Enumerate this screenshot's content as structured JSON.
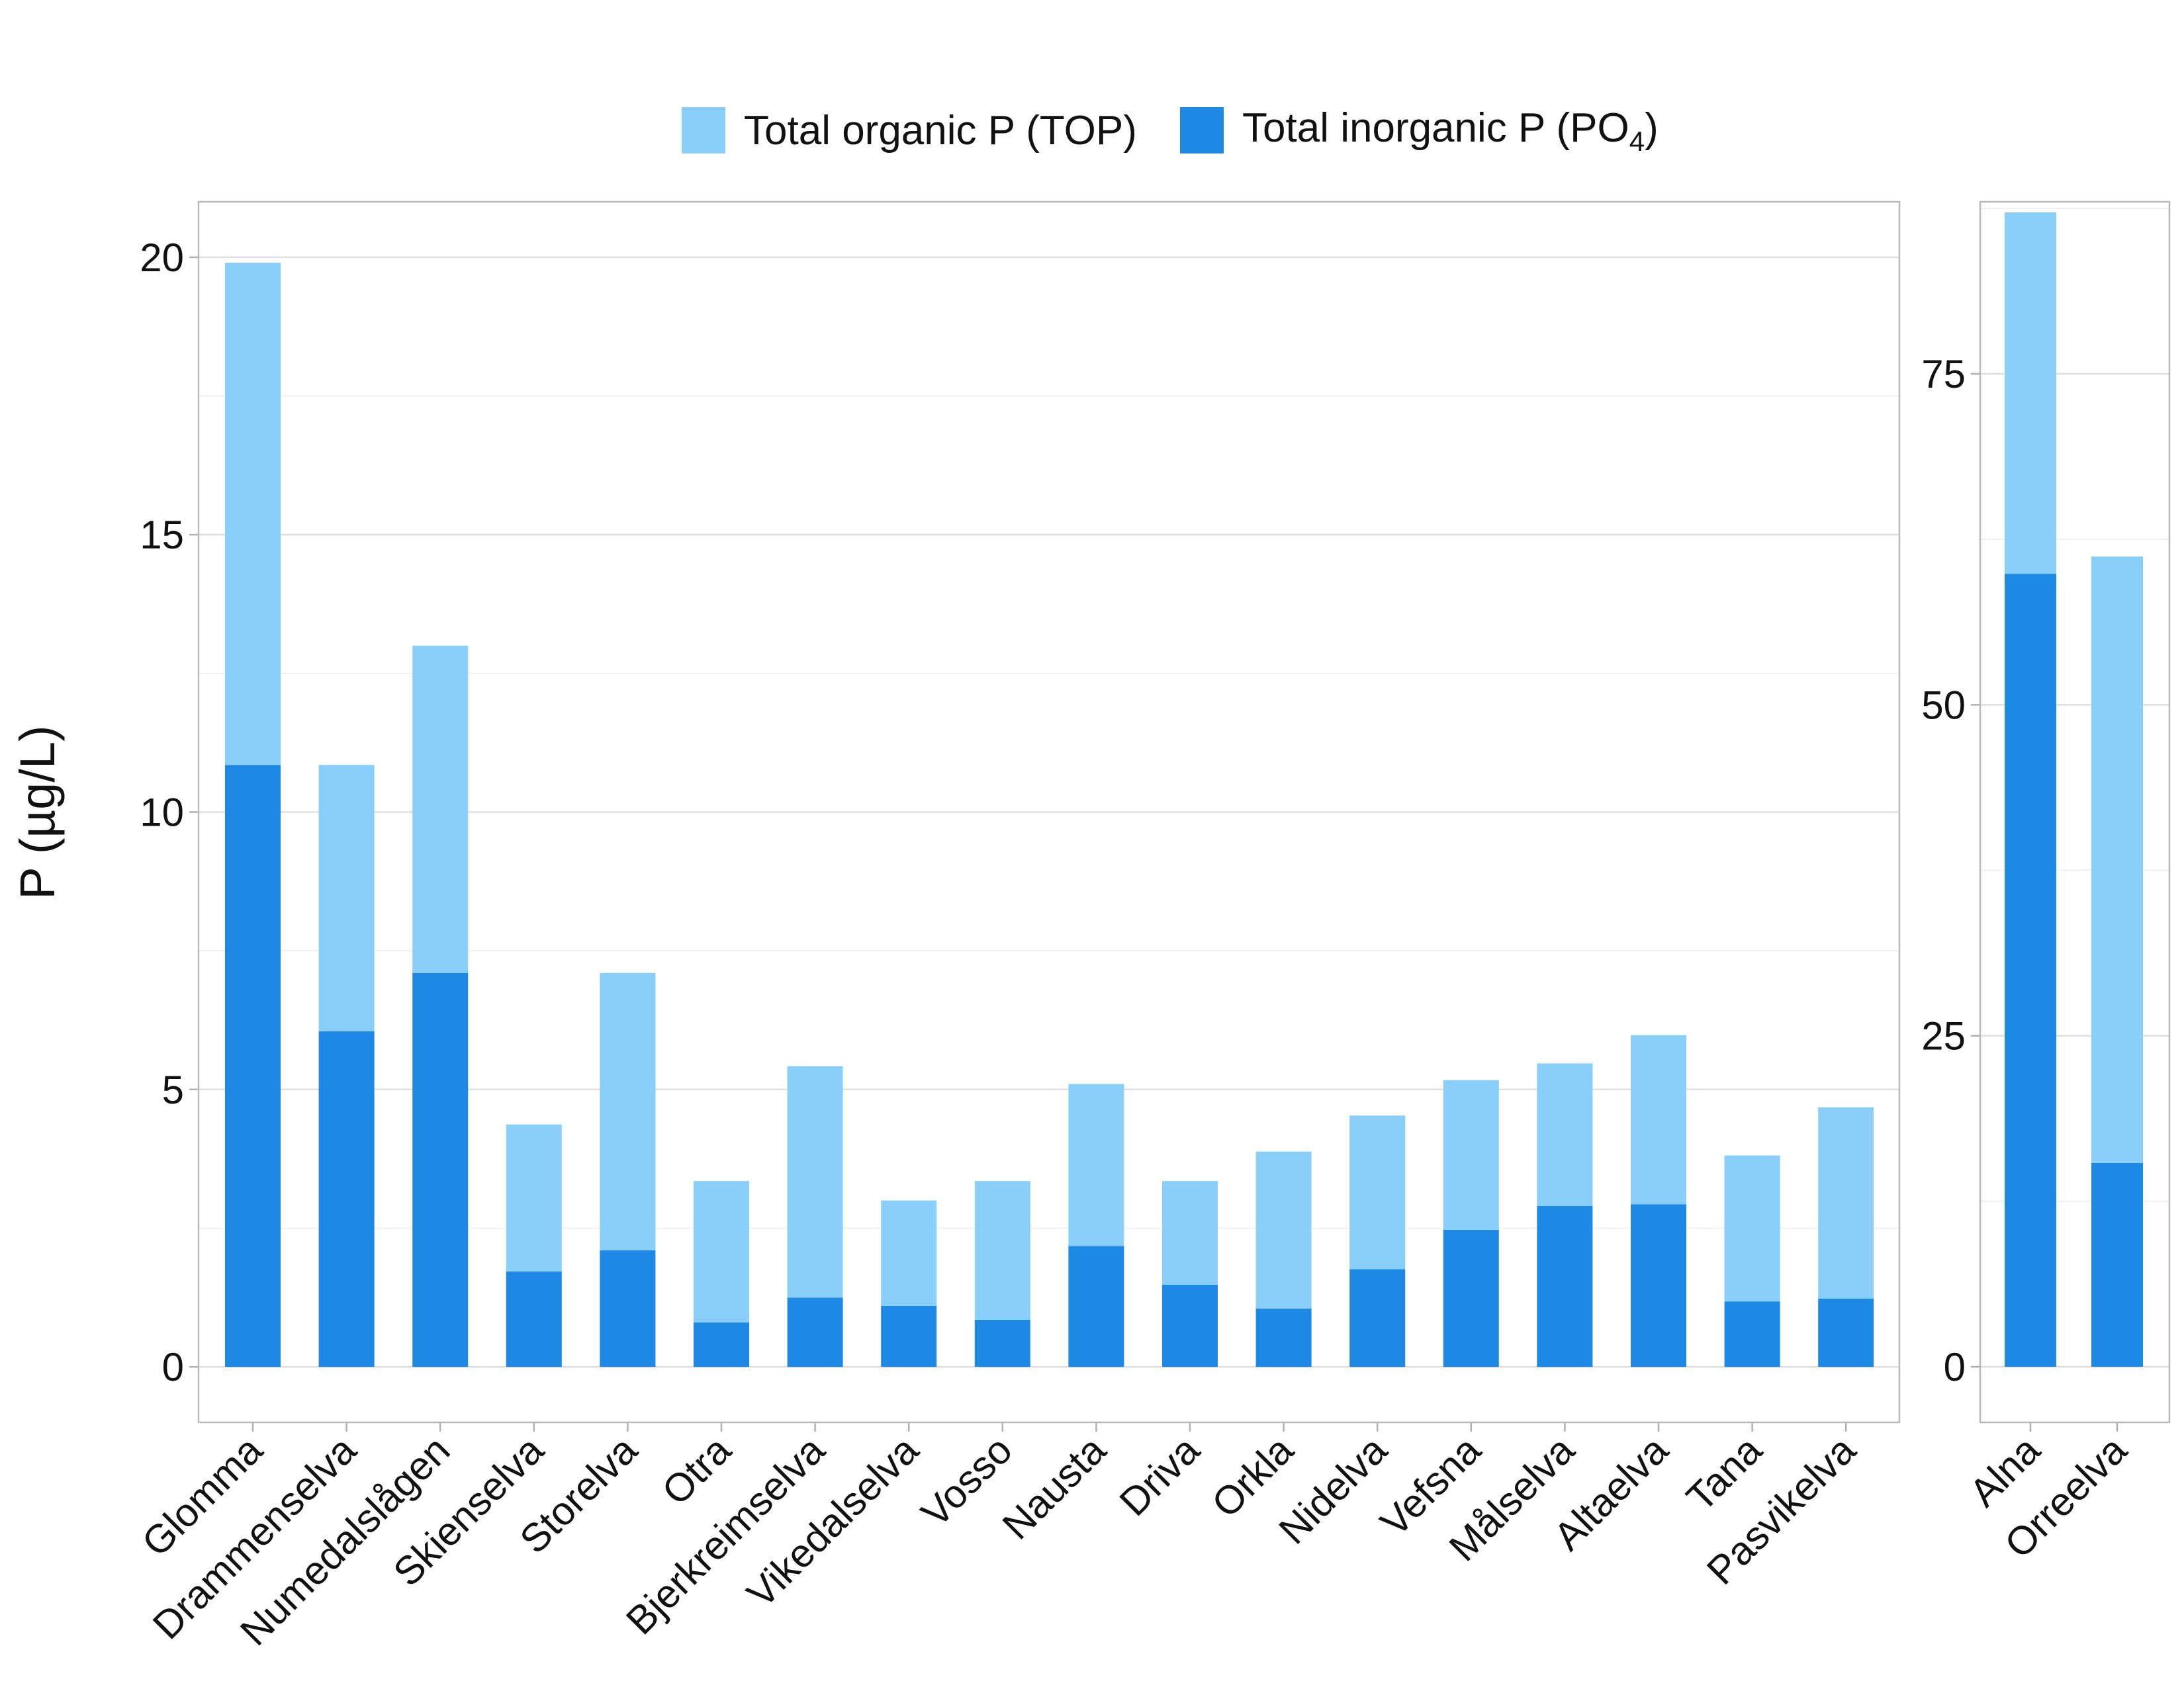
{
  "chart_data": [
    {
      "type": "bar",
      "stacked": true,
      "ylabel": "P (µg/L)",
      "ylim": [
        -1,
        21
      ],
      "yticks": [
        0,
        5,
        10,
        15,
        20
      ],
      "grid": true,
      "legend_position": "top",
      "categories": [
        "Glomma",
        "Drammenselva",
        "Numedalslågen",
        "Skienselva",
        "Storelva",
        "Otra",
        "Bjerkreimselva",
        "Vikedalselva",
        "Vosso",
        "Nausta",
        "Driva",
        "Orkla",
        "Nidelva",
        "Vefsna",
        "Målselva",
        "Altaelva",
        "Tana",
        "Pasvikelva"
      ],
      "series": [
        {
          "name": "Total inorganic P (PO4)",
          "color": "#1e88e5",
          "values": [
            10.85,
            6.05,
            7.1,
            1.72,
            2.1,
            0.8,
            1.25,
            1.1,
            0.85,
            2.18,
            1.48,
            1.05,
            1.76,
            2.47,
            2.9,
            2.93,
            1.18,
            1.23
          ]
        },
        {
          "name": "Total organic P (TOP)",
          "color": "#89cff9",
          "values": [
            9.05,
            4.8,
            5.9,
            2.65,
            5.0,
            2.55,
            4.17,
            1.9,
            2.5,
            2.92,
            1.87,
            2.83,
            2.77,
            2.7,
            2.57,
            3.05,
            2.63,
            3.45
          ]
        }
      ]
    },
    {
      "type": "bar",
      "stacked": true,
      "ylim": [
        -4.2,
        88
      ],
      "yticks": [
        0,
        25,
        50,
        75
      ],
      "grid": true,
      "categories": [
        "Alna",
        "Orreelva"
      ],
      "series": [
        {
          "name": "Total inorganic P (PO4)",
          "color": "#1e88e5",
          "values": [
            59.9,
            15.4
          ]
        },
        {
          "name": "Total organic P (TOP)",
          "color": "#89cff9",
          "values": [
            27.3,
            45.8
          ]
        }
      ]
    }
  ],
  "legend": {
    "items": [
      {
        "label": "Total organic P (TOP)",
        "color": "#89cff9"
      },
      {
        "label_main": "Total inorganic P (PO",
        "label_sub": "4",
        "label_end": ")",
        "color": "#1e88e5"
      }
    ]
  }
}
